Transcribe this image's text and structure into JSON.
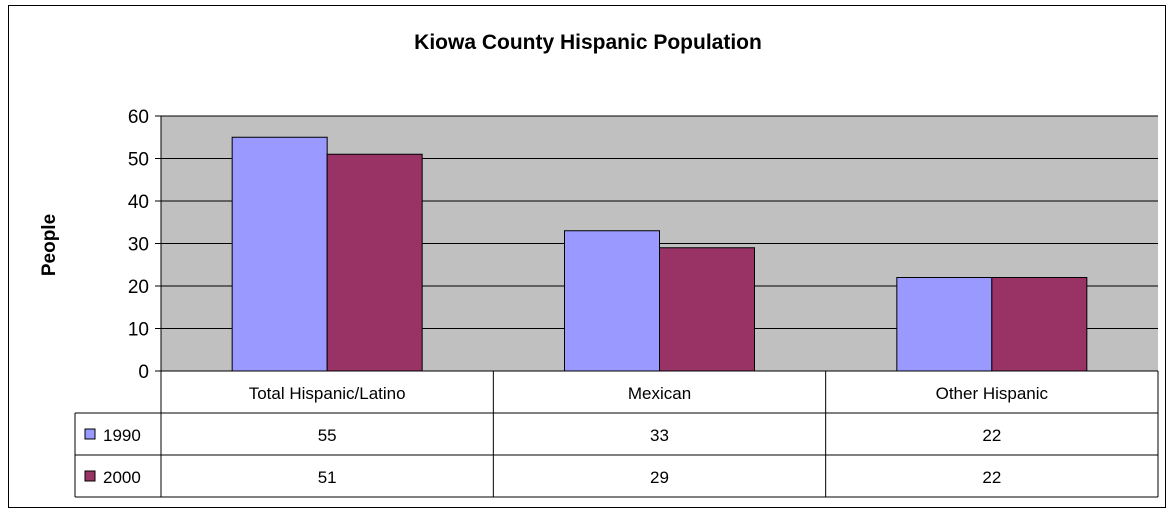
{
  "chart_data": {
    "type": "bar",
    "title": "Kiowa County Hispanic Population",
    "xlabel": "",
    "ylabel": "People",
    "ylim": [
      0,
      60
    ],
    "yticks": [
      "0",
      "10",
      "20",
      "30",
      "40",
      "50",
      "60"
    ],
    "categories": [
      "Total Hispanic/Latino",
      "Mexican",
      "Other Hispanic"
    ],
    "series": [
      {
        "name": "1990",
        "values": [
          55,
          33,
          22
        ],
        "color": "#9999FF"
      },
      {
        "name": "2000",
        "values": [
          51,
          29,
          22
        ],
        "color": "#993366"
      }
    ],
    "grid": true,
    "plot_background": "#C0C0C0",
    "legend": "data-table",
    "data_table": {
      "rows": [
        {
          "series": "1990",
          "cells": [
            "55",
            "33",
            "22"
          ]
        },
        {
          "series": "2000",
          "cells": [
            "51",
            "29",
            "22"
          ]
        }
      ]
    }
  }
}
